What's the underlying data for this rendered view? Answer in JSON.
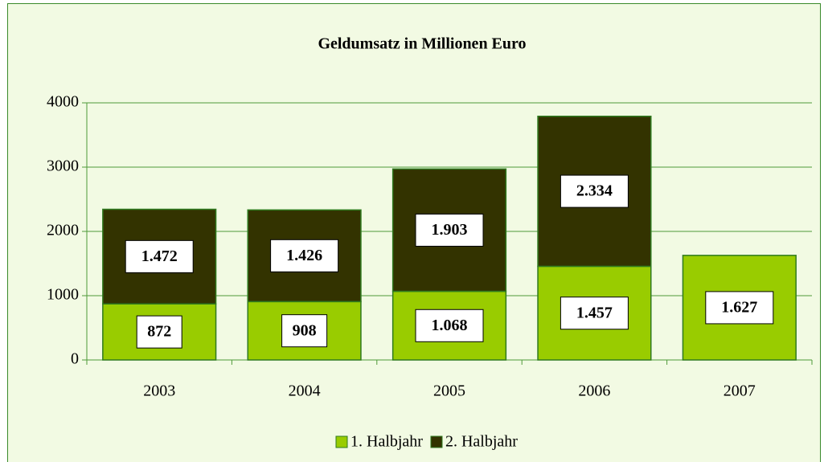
{
  "chart_data": {
    "type": "bar",
    "stacked": true,
    "title": "Geldumsatz in Millionen Euro",
    "categories": [
      "2003",
      "2004",
      "2005",
      "2006",
      "2007"
    ],
    "series": [
      {
        "name": "1. Halbjahr",
        "color": "#99cc00",
        "values": [
          872,
          908,
          1068,
          1457,
          1627
        ],
        "value_labels": [
          "872",
          "908",
          "1.068",
          "1.457",
          "1.627"
        ]
      },
      {
        "name": "2. Halbjahr",
        "color": "#333300",
        "values": [
          1472,
          1426,
          1903,
          2334,
          null
        ],
        "value_labels": [
          "1.472",
          "1.426",
          "1.903",
          "2.334",
          null
        ]
      }
    ],
    "ylim": [
      0,
      4000
    ],
    "yticks": [
      0,
      1000,
      2000,
      3000,
      4000
    ],
    "grid": true,
    "legend": "bottom"
  }
}
